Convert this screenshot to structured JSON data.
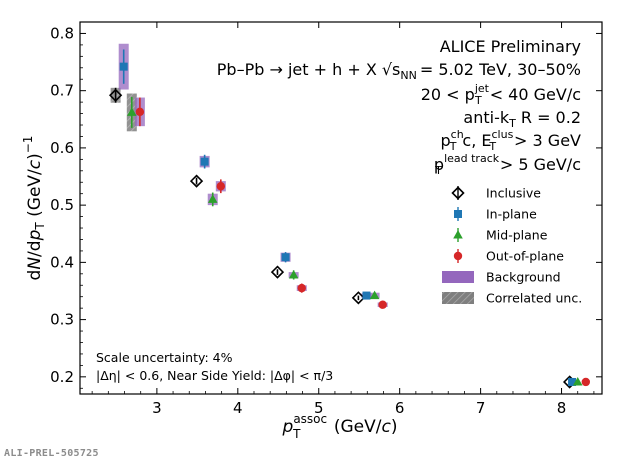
{
  "colors": {
    "inclusive": "#000000",
    "in_plane": "#1f77b4",
    "mid_plane": "#2ca02c",
    "out_of_plane": "#d62728",
    "background": "#9467bd",
    "correlated": "#7f7f7f"
  },
  "annotations": {
    "experiment": "ALICE Preliminary",
    "system_a": "Pb–Pb → jet + h + X √s",
    "system_sub": "NN",
    "system_b": "= 5.02 TeV, 30–50%",
    "jet_range_a": "20 < p",
    "jet_sup": "jet",
    "jet_sub": "T",
    "jet_range_b": "< 40 GeV/c",
    "anti_kt": "anti-k",
    "anti_kt_sub": "T",
    "anti_kt_r": "R = 0.2",
    "cuts_a": "p",
    "cuts_sup": "ch",
    "cuts_sub": "T",
    "cuts_b": "c, E",
    "cuts_sup2": "clus",
    "cuts_sub2": "T",
    "cuts_c": "> 3 GeV",
    "lead_a": "p",
    "lead_sup": "lead track",
    "lead_sub": "T",
    "lead_b": "> 5 GeV/c",
    "scale_unc": "Scale uncertainty: 4%",
    "eta_cut": "|Δη| < 0.6, Near Side Yield: |Δφ| < π/3"
  },
  "prel_id": "ALI-PREL-505725",
  "chart_data": {
    "type": "scatter",
    "xlabel": "p_T^assoc (GeV/c)",
    "ylabel": "dN/dp_T (GeV/c)^-1",
    "xlim": [
      2.05,
      8.5
    ],
    "ylim": [
      0.17,
      0.82
    ],
    "xticks": [
      3,
      4,
      5,
      6,
      7,
      8
    ],
    "yticks": [
      0.2,
      0.3,
      0.4,
      0.5,
      0.6,
      0.7,
      0.8
    ],
    "xtick_labels": [
      "3",
      "4",
      "5",
      "6",
      "7",
      "8"
    ],
    "ytick_labels": [
      "0.2",
      "0.3",
      "0.4",
      "0.5",
      "0.6",
      "0.7",
      "0.8"
    ],
    "legend_position": "right",
    "series": [
      {
        "name": "Inclusive",
        "marker": "diamond-open",
        "points": [
          {
            "x": 2.49,
            "y": 0.692,
            "err": 0.013,
            "sys": 0.013,
            "sys_style": "corr"
          },
          {
            "x": 3.49,
            "y": 0.542,
            "err": 0.006
          },
          {
            "x": 4.49,
            "y": 0.383,
            "err": 0.005
          },
          {
            "x": 5.49,
            "y": 0.338,
            "err": 0.004
          },
          {
            "x": 8.1,
            "y": 0.191,
            "err": 0.002
          }
        ]
      },
      {
        "name": "In-plane",
        "marker": "square",
        "points": [
          {
            "x": 2.59,
            "y": 0.742,
            "err": 0.03,
            "sys": 0.04,
            "sys_style": "bkg"
          },
          {
            "x": 3.59,
            "y": 0.576,
            "err": 0.012,
            "sys": 0.01,
            "sys_style": "bkg"
          },
          {
            "x": 4.59,
            "y": 0.409,
            "err": 0.009,
            "sys": 0.008,
            "sys_style": "bkg"
          },
          {
            "x": 5.59,
            "y": 0.342,
            "err": 0.005,
            "sys": 0.004,
            "sys_style": "bkg"
          },
          {
            "x": 8.13,
            "y": 0.191,
            "err": 0.002
          }
        ]
      },
      {
        "name": "Mid-plane",
        "marker": "triangle",
        "points": [
          {
            "x": 2.69,
            "y": 0.662,
            "err": 0.027,
            "sys": 0.033,
            "sys_style": "corr"
          },
          {
            "x": 3.69,
            "y": 0.51,
            "err": 0.012,
            "sys": 0.01,
            "sys_style": "bkg"
          },
          {
            "x": 4.69,
            "y": 0.378,
            "err": 0.008,
            "sys": 0.005,
            "sys_style": "bkg"
          },
          {
            "x": 5.69,
            "y": 0.342,
            "err": 0.006,
            "sys": 0.005,
            "sys_style": "bkg"
          },
          {
            "x": 8.2,
            "y": 0.191,
            "err": 0.002
          }
        ]
      },
      {
        "name": "Out-of-plane",
        "marker": "circle",
        "points": [
          {
            "x": 2.79,
            "y": 0.663,
            "err": 0.025,
            "sys": 0.025,
            "sys_style": "bkg"
          },
          {
            "x": 3.79,
            "y": 0.533,
            "err": 0.012,
            "sys": 0.009,
            "sys_style": "bkg"
          },
          {
            "x": 4.79,
            "y": 0.355,
            "err": 0.008,
            "sys": 0.005,
            "sys_style": "bkg"
          },
          {
            "x": 5.79,
            "y": 0.326,
            "err": 0.006,
            "sys": 0.004,
            "sys_style": "bkg"
          },
          {
            "x": 8.3,
            "y": 0.191,
            "err": 0.002
          }
        ]
      }
    ],
    "legend": [
      {
        "label": "Inclusive",
        "marker": "diamond-open",
        "color_key": "inclusive"
      },
      {
        "label": "In-plane",
        "marker": "square",
        "color_key": "in_plane"
      },
      {
        "label": "Mid-plane",
        "marker": "triangle",
        "color_key": "mid_plane"
      },
      {
        "label": "Out-of-plane",
        "marker": "circle",
        "color_key": "out_of_plane"
      },
      {
        "label": "Background",
        "marker": "box",
        "color_key": "background"
      },
      {
        "label": "Correlated unc.",
        "marker": "box-hatched",
        "color_key": "correlated"
      }
    ]
  }
}
